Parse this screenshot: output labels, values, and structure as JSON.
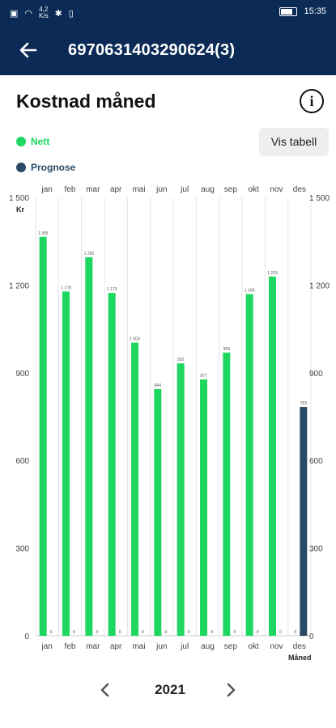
{
  "statusbar": {
    "speed_value": "4,2",
    "speed_unit": "K/s",
    "time": "15:35"
  },
  "appbar": {
    "title": "6970631403290624(3)"
  },
  "page": {
    "title": "Kostnad måned",
    "vis_tabell": "Vis tabell",
    "year": "2021"
  },
  "colors": {
    "nett": "#1ed760",
    "prognose": "#2b4a66",
    "header": "#0b2a55"
  },
  "chart_data": {
    "type": "bar",
    "categories": [
      "jan",
      "feb",
      "mar",
      "apr",
      "mai",
      "jun",
      "jul",
      "aug",
      "sep",
      "okt",
      "nov",
      "des"
    ],
    "series": [
      {
        "name": "Nett",
        "values": [
          1365,
          1178,
          1295,
          1173,
          1003,
          844,
          932,
          877,
          969,
          1169,
          1229,
          0
        ],
        "labels": [
          "1 365",
          "1 178",
          "1 295",
          "1 173",
          "1 003",
          "844",
          "932",
          "877",
          "969",
          "1 169",
          "1 229",
          "0"
        ]
      },
      {
        "name": "Prognose",
        "values": [
          0,
          0,
          0,
          0,
          0,
          0,
          0,
          0,
          0,
          0,
          0,
          783
        ],
        "labels": [
          "0",
          "0",
          "0",
          "0",
          "0",
          "0",
          "0",
          "0",
          "0",
          "0",
          "0",
          "783"
        ]
      }
    ],
    "yticks": [
      "0",
      "300",
      "600",
      "900",
      "1 200",
      "1 500"
    ],
    "ytick_values": [
      0,
      300,
      600,
      900,
      1200,
      1500
    ],
    "ylim": [
      0,
      1500
    ],
    "ylabel": "Kr",
    "xlabel": "Måned",
    "legend": "top-left",
    "grid": true
  }
}
